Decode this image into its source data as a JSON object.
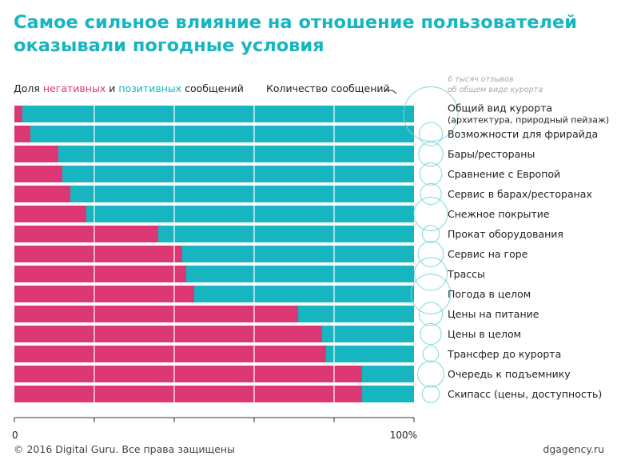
{
  "title": "Самое сильное влияние на отношение пользователей оказывали погодные условия",
  "legend": {
    "prefix": "Доля",
    "negative": "негативных",
    "and": "и",
    "positive": "позитивных",
    "suffix": "сообщений",
    "count_label": "Количество сообщений",
    "bubble_note_line1": "6 тысяч отзывов",
    "bubble_note_line2": "об общем виде курорта"
  },
  "footer": {
    "copyright": "© 2016 Digital Guru. Все права защищены",
    "site": "dgagency.ru"
  },
  "colors": {
    "negative": "#dc3775",
    "positive": "#16b5bf",
    "bubble": "#7fd6dc"
  },
  "chart_data": {
    "type": "bar",
    "orientation": "horizontal",
    "stacked": true,
    "percent": true,
    "xlim": [
      0,
      100
    ],
    "x_tick_labels": [
      "0",
      "100%"
    ],
    "x_ticks": [
      0,
      20,
      40,
      60,
      80,
      100
    ],
    "categories": [
      "Общий вид курорта\n(архитектура, природный пейзаж)",
      "Возможности для фрирайда",
      "Бары/рестораны",
      "Сравнение с Европой",
      "Сервис в барах/ресторанах",
      "Снежное покрытие",
      "Прокат оборудования",
      "Сервис на горе",
      "Трассы",
      "Погода в целом",
      "Цены на питание",
      "Цены в целом",
      "Трансфер до курорта",
      "Очередь к подъемнику",
      "Скипасс (цены, доступность)"
    ],
    "series": [
      {
        "name": "негативных",
        "values": [
          2,
          4,
          11,
          12,
          14,
          18,
          36,
          42,
          43,
          45,
          71,
          77,
          78,
          87,
          87
        ]
      },
      {
        "name": "позитивных",
        "values": [
          98,
          96,
          89,
          88,
          86,
          82,
          64,
          58,
          57,
          55,
          29,
          23,
          22,
          13,
          13
        ]
      }
    ],
    "message_counts_thousands": [
      6,
      1.1,
      1.2,
      1,
      0.9,
      2.3,
      0.6,
      1.3,
      2.2,
      3.2,
      1.1,
      0.9,
      0.5,
      1.4,
      0.6
    ]
  }
}
